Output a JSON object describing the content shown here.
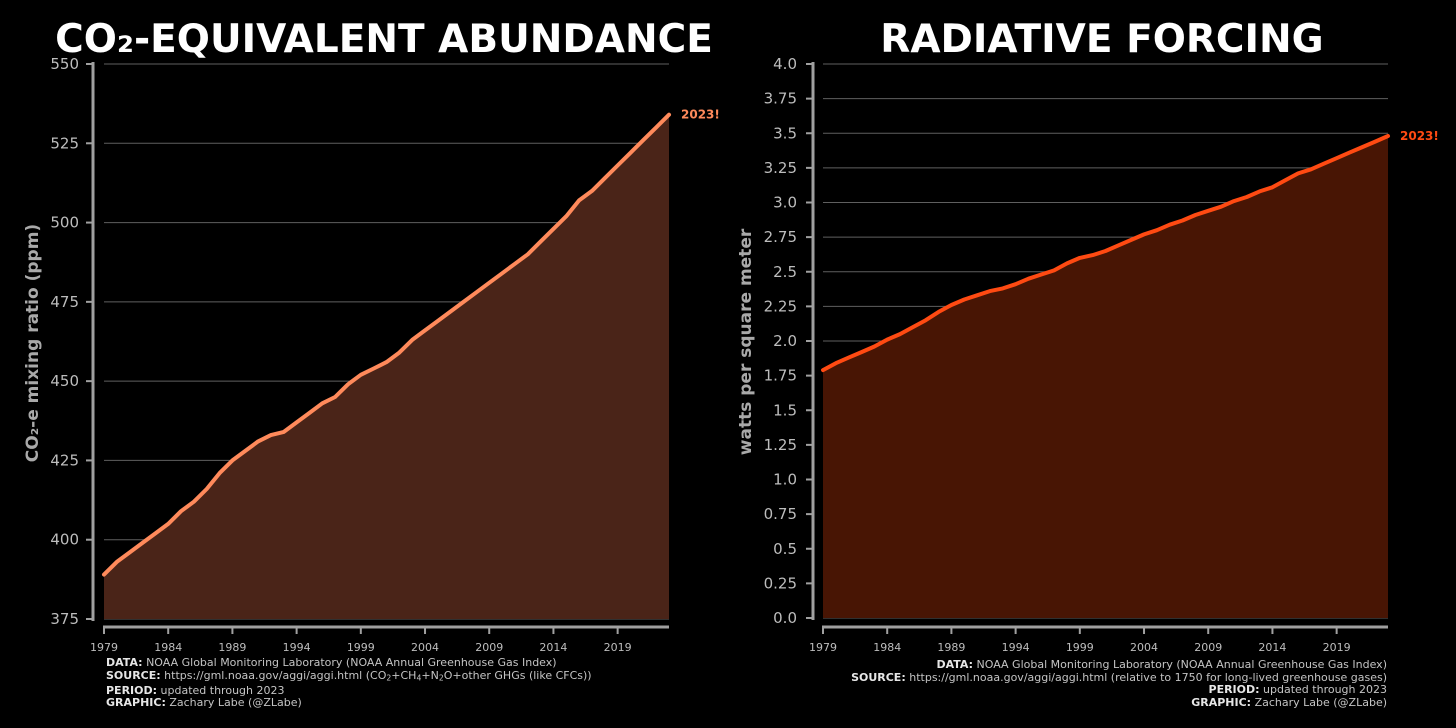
{
  "chart_data": [
    {
      "type": "area",
      "title": "CO₂-EQUIVALENT ABUNDANCE",
      "ylabel": "CO₂-e mixing ratio (ppm)",
      "xlabel": "",
      "xlim": [
        1979,
        2023
      ],
      "ylim": [
        375,
        550
      ],
      "yticks": [
        "375",
        "400",
        "425",
        "450",
        "475",
        "500",
        "525",
        "550"
      ],
      "xticks": [
        "1979",
        "1984",
        "1989",
        "1994",
        "1999",
        "2004",
        "2009",
        "2014",
        "2019"
      ],
      "grid": true,
      "end_label": "2023!",
      "line_color": "#ff8a5b",
      "fill_color": "#4a2418",
      "x": [
        1979,
        1980,
        1981,
        1982,
        1983,
        1984,
        1985,
        1986,
        1987,
        1988,
        1989,
        1990,
        1991,
        1992,
        1993,
        1994,
        1995,
        1996,
        1997,
        1998,
        1999,
        2000,
        2001,
        2002,
        2003,
        2004,
        2005,
        2006,
        2007,
        2008,
        2009,
        2010,
        2011,
        2012,
        2013,
        2014,
        2015,
        2016,
        2017,
        2018,
        2019,
        2020,
        2021,
        2022,
        2023
      ],
      "values": [
        389,
        393,
        396,
        399,
        402,
        405,
        409,
        412,
        416,
        421,
        425,
        428,
        431,
        433,
        434,
        437,
        440,
        443,
        445,
        449,
        452,
        454,
        456,
        459,
        463,
        466,
        469,
        472,
        475,
        478,
        481,
        484,
        487,
        490,
        494,
        498,
        502,
        507,
        510,
        514,
        518,
        522,
        526,
        530,
        534
      ]
    },
    {
      "type": "area",
      "title": "RADIATIVE FORCING",
      "ylabel": "watts per square meter",
      "xlabel": "",
      "xlim": [
        1979,
        2023
      ],
      "ylim": [
        0,
        4.0
      ],
      "yticks": [
        "0.0",
        "0.25",
        "0.5",
        "0.75",
        "1.0",
        "1.25",
        "1.5",
        "1.75",
        "2.0",
        "2.25",
        "2.5",
        "2.75",
        "3.0",
        "3.25",
        "3.5",
        "3.75",
        "4.0"
      ],
      "xticks": [
        "1979",
        "1984",
        "1989",
        "1994",
        "1999",
        "2004",
        "2009",
        "2014",
        "2019"
      ],
      "grid": true,
      "end_label": "2023!",
      "line_color": "#ff4a12",
      "fill_color": "#481504",
      "x": [
        1979,
        1980,
        1981,
        1982,
        1983,
        1984,
        1985,
        1986,
        1987,
        1988,
        1989,
        1990,
        1991,
        1992,
        1993,
        1994,
        1995,
        1996,
        1997,
        1998,
        1999,
        2000,
        2001,
        2002,
        2003,
        2004,
        2005,
        2006,
        2007,
        2008,
        2009,
        2010,
        2011,
        2012,
        2013,
        2014,
        2015,
        2016,
        2017,
        2018,
        2019,
        2020,
        2021,
        2022,
        2023
      ],
      "values": [
        1.79,
        1.84,
        1.88,
        1.92,
        1.96,
        2.01,
        2.05,
        2.1,
        2.15,
        2.21,
        2.26,
        2.3,
        2.33,
        2.36,
        2.38,
        2.41,
        2.45,
        2.48,
        2.51,
        2.56,
        2.6,
        2.62,
        2.65,
        2.69,
        2.73,
        2.77,
        2.8,
        2.84,
        2.87,
        2.91,
        2.94,
        2.97,
        3.01,
        3.04,
        3.08,
        3.11,
        3.16,
        3.21,
        3.24,
        3.28,
        3.32,
        3.36,
        3.4,
        3.44,
        3.48
      ]
    }
  ],
  "footer_left": {
    "data_label": "DATA:",
    "data_text": "NOAA Global Monitoring Laboratory (NOAA Annual Greenhouse Gas Index)",
    "source_label": "SOURCE:",
    "source_text_1": "https://gml.noaa.gov/aggi/aggi.html (CO",
    "source_sub_1": "2",
    "source_text_2": "+CH",
    "source_sub_2": "4",
    "source_text_3": "+N",
    "source_sub_3": "2",
    "source_text_4": "O+other GHGs (like CFCs))",
    "period_label": "PERIOD:",
    "period_text": "updated through 2023",
    "graphic_label": "GRAPHIC:",
    "graphic_text": "Zachary Labe (@ZLabe)"
  },
  "footer_right": {
    "data_label": "DATA:",
    "data_text": "NOAA Global Monitoring Laboratory (NOAA Annual Greenhouse Gas Index)",
    "source_label": "SOURCE:",
    "source_text": "https://gml.noaa.gov/aggi/aggi.html (relative to 1750 for long-lived greenhouse gases)",
    "period_label": "PERIOD:",
    "period_text": "updated through 2023",
    "graphic_label": "GRAPHIC:",
    "graphic_text": "Zachary Labe (@ZLabe)"
  }
}
